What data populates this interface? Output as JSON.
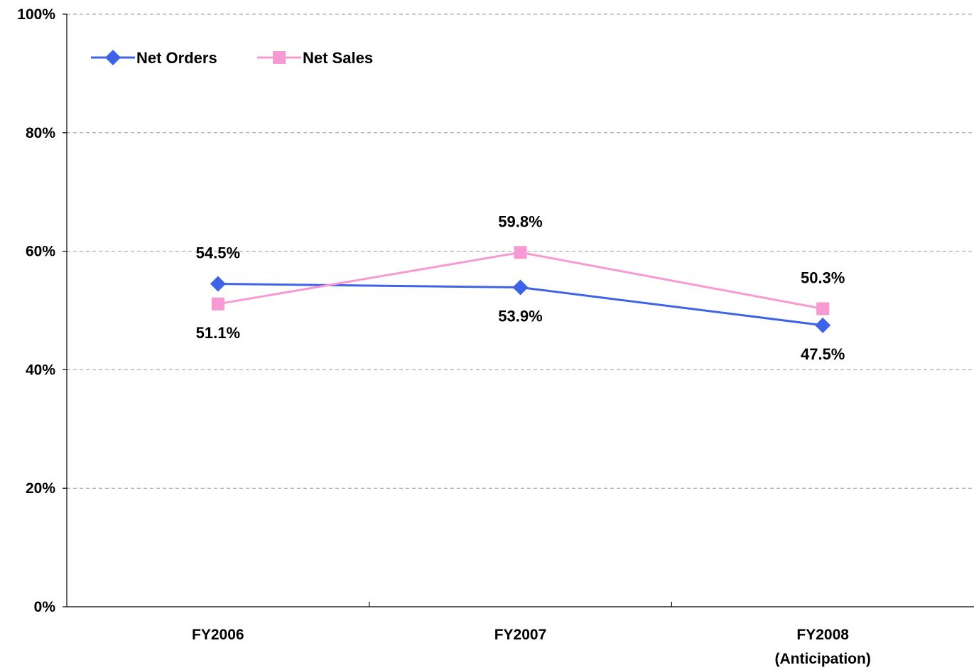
{
  "chart_data": {
    "type": "line",
    "categories": [
      [
        "FY2006"
      ],
      [
        "FY2007"
      ],
      [
        "FY2008",
        "(Anticipation)"
      ]
    ],
    "ylim": [
      0,
      100
    ],
    "yticks": [
      0,
      20,
      40,
      60,
      80,
      100
    ],
    "ytick_labels": [
      "0%",
      "20%",
      "40%",
      "60%",
      "80%",
      "100%"
    ],
    "grid": true,
    "legend_position": "top-left",
    "series": [
      {
        "name": "Net Orders",
        "values": [
          54.5,
          53.9,
          47.5
        ],
        "labels": [
          "54.5%",
          "53.9%",
          "47.5%"
        ],
        "color": "#3F63E6",
        "marker": "diamond",
        "label_side": [
          "above",
          "below",
          "below"
        ]
      },
      {
        "name": "Net Sales",
        "values": [
          51.1,
          59.8,
          50.3
        ],
        "labels": [
          "51.1%",
          "59.8%",
          "50.3%"
        ],
        "color": "#F79AD3",
        "marker": "square",
        "label_side": [
          "below",
          "above",
          "above"
        ]
      }
    ]
  }
}
